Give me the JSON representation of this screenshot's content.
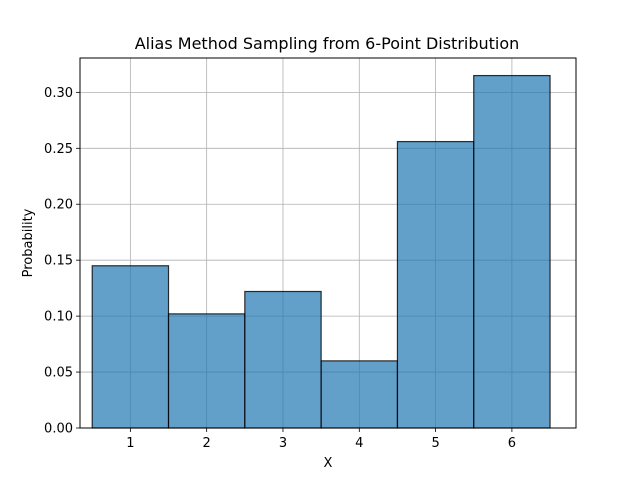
{
  "chart_data": {
    "type": "bar",
    "title": "Alias Method Sampling from 6-Point Distribution",
    "xlabel": "X",
    "ylabel": "Probability",
    "categories": [
      "1",
      "2",
      "3",
      "4",
      "5",
      "6"
    ],
    "x": [
      1,
      2,
      3,
      4,
      5,
      6
    ],
    "values": [
      0.145,
      0.102,
      0.122,
      0.06,
      0.256,
      0.315
    ],
    "xlim": [
      0.34,
      6.84
    ],
    "ylim": [
      0,
      0.3307
    ],
    "yticks": [
      0.0,
      0.05,
      0.1,
      0.15,
      0.2,
      0.25,
      0.3
    ],
    "ytick_labels": [
      "0.00",
      "0.05",
      "0.10",
      "0.15",
      "0.20",
      "0.25",
      "0.30"
    ],
    "grid": true,
    "bar_color": "#1f77b4",
    "bar_alpha": 0.7,
    "bar_edge_color": "#000000"
  }
}
